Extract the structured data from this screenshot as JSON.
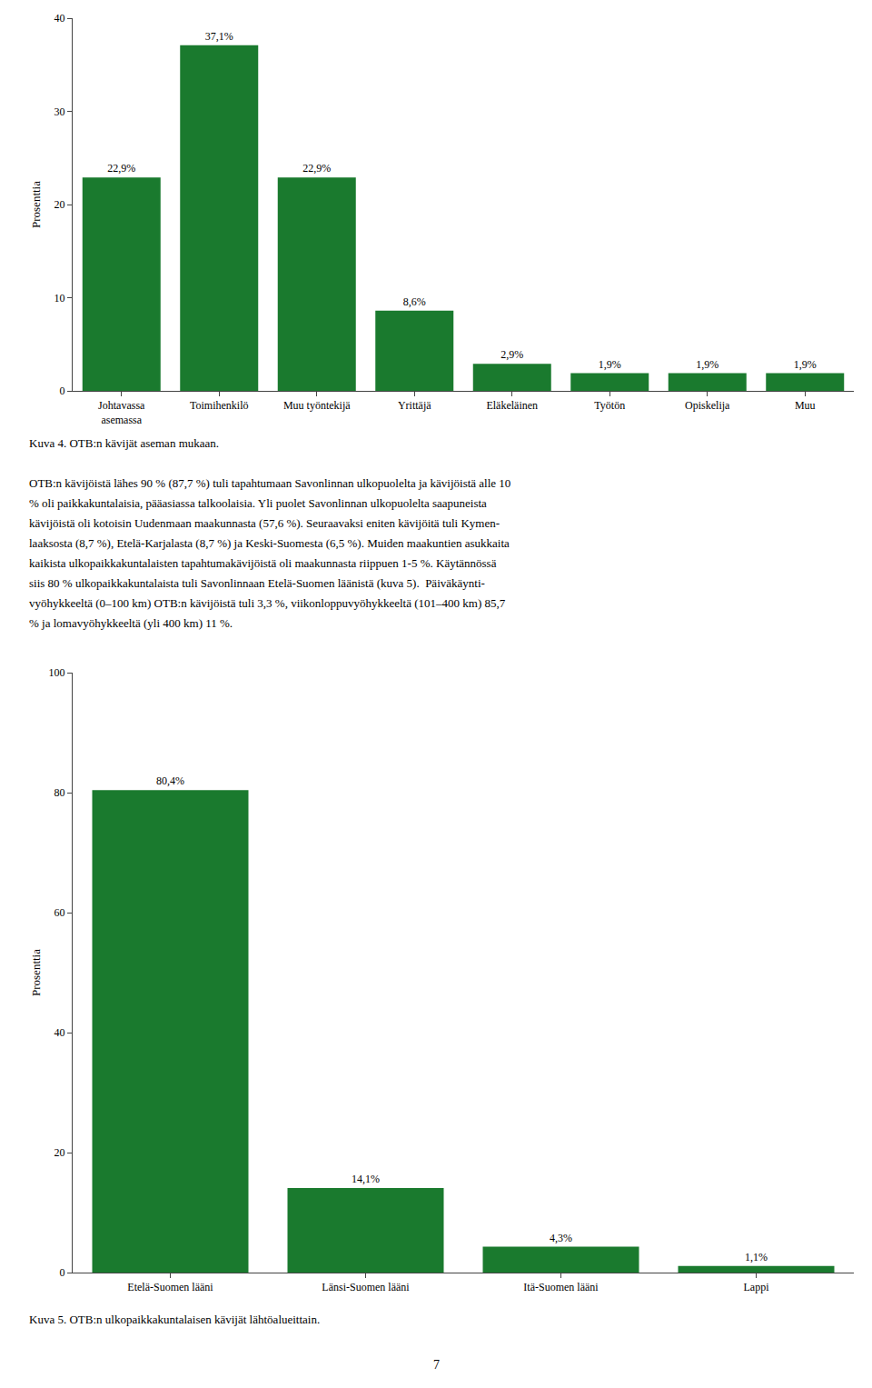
{
  "chart_data": [
    {
      "type": "bar",
      "title": "Kuva 4. OTB:n kävijät aseman mukaan.",
      "categories": [
        "Johtavassa\nasemassa",
        "Toimihenkilö",
        "Muu työntekijä",
        "Yrittäjä",
        "Eläkeläinen",
        "Työtön",
        "Opiskelija",
        "Muu"
      ],
      "values": [
        22.9,
        37.1,
        22.9,
        8.6,
        2.9,
        1.9,
        1.9,
        1.9
      ],
      "value_labels": [
        "22,9%",
        "37,1%",
        "22,9%",
        "8,6%",
        "2,9%",
        "1,9%",
        "1,9%",
        "1,9%"
      ],
      "data_labels": true,
      "ylabel": "Prosenttia",
      "ylim": [
        0,
        40
      ],
      "yticks": [
        0,
        10,
        20,
        30,
        40
      ],
      "color": "#1a7a2e",
      "grid": false,
      "annotations": [
        "OTB:n kävijöistä lähes 90 % (87,7 %) tuli tapahtumaan Savonlinnan ulkopuolelta ja kävijöistä alle 10",
        "% oli paikkakuntalaisia, pääasiassa talkoolaisia. Yli puolet Savonlinnan ulkopuolelta saapuneista",
        "kävijöistä oli kotoisin Uudenmaan maakunnasta (57,6 %). Seuraavaksi eniten kävijöitä tuli Kymen-",
        "laaksosta (8,7 %), Etelä-Karjalasta (8,7 %) ja Keski-Suomesta (6,5 %). Muiden maakuntien asukkaita",
        "kaikista ulkopaikkakuntalaisten tapahtumakävijöistä oli maakunnasta riippuen 1-5 %. Käytännössä",
        "siis 80 % ulkopaikkakuntalaista tuli Savonlinnaan Etelä-Suomen läänistä (kuva 5).  Päiväkäynti-",
        "vyöhykkeeltä (0–100 km) OTB:n kävijöistä tuli 3,3 %, viikonloppuvyöhykkeeltä (101–400 km) 85,7",
        "% ja lomavyöhykkeeltä (yli 400 km) 11 %."
      ]
    },
    {
      "type": "bar",
      "title": "Kuva 5. OTB:n ulkopaikkakuntalaisen kävijät lähtöalueittain.",
      "categories": [
        "Etelä-Suomen lääni",
        "Länsi-Suomen lääni",
        "Itä-Suomen lääni",
        "Lappi"
      ],
      "values": [
        80.4,
        14.1,
        4.3,
        1.1
      ],
      "value_labels": [
        "80,4%",
        "14,1%",
        "4,3%",
        "1,1%"
      ],
      "data_labels": true,
      "ylabel": "Prosenttia",
      "ylim": [
        0,
        100
      ],
      "yticks": [
        0,
        20,
        40,
        60,
        80,
        100
      ],
      "color": "#1a7a2e",
      "grid": false,
      "annotations": [
        "7"
      ]
    }
  ]
}
